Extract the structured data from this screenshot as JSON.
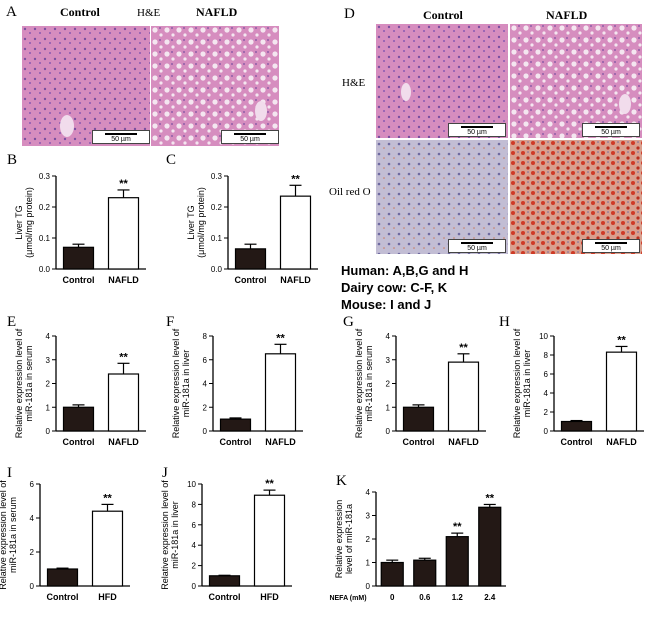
{
  "colors": {
    "bar_dark": "#231815",
    "he_pink": "#d67fb2",
    "he_light": "#efc3e0",
    "oil_bg": "#b9b3cc",
    "oil_red": "#cf3a26"
  },
  "micrographs": {
    "A": {
      "label": "A",
      "header_left": "Control",
      "header_mid": "H&E",
      "header_right": "NAFLD",
      "scale_left": "50 µm",
      "scale_right": "50 µm"
    },
    "D": {
      "label": "D",
      "header_left": "Control",
      "header_right": "NAFLD",
      "row1_label": "H&E",
      "row2_label": "Oil red O",
      "scale_tl": "50 µm",
      "scale_tr": "50 µm",
      "scale_bl": "50 µm",
      "scale_br": "50 µm"
    }
  },
  "legend": {
    "line1": "Human: A,B,G and H",
    "line2": "Dairy cow: C-F, K",
    "line3": "Mouse: I and J"
  },
  "sig_label": "**",
  "chart_data": [
    {
      "id": "B",
      "type": "bar",
      "categories": [
        "Control",
        "NAFLD"
      ],
      "values": [
        0.07,
        0.23
      ],
      "errors": [
        0.01,
        0.025
      ],
      "ylim": [
        0,
        0.3
      ],
      "ticks": [
        "0.0",
        "0.1",
        "0.2",
        "0.3"
      ],
      "ylabel": "Liver TG",
      "ylabel2": "(μmol/mg protein)",
      "styles": [
        "filled",
        "open"
      ]
    },
    {
      "id": "C",
      "type": "bar",
      "categories": [
        "Control",
        "NAFLD"
      ],
      "values": [
        0.065,
        0.235
      ],
      "errors": [
        0.015,
        0.035
      ],
      "ylim": [
        0,
        0.3
      ],
      "ticks": [
        "0.0",
        "0.1",
        "0.2",
        "0.3"
      ],
      "ylabel": "Liver TG",
      "ylabel2": "(μmol/mg protein)",
      "styles": [
        "filled",
        "open"
      ]
    },
    {
      "id": "E",
      "type": "bar",
      "categories": [
        "Control",
        "NAFLD"
      ],
      "values": [
        1.0,
        2.4
      ],
      "errors": [
        0.1,
        0.45
      ],
      "ylim": [
        0,
        4
      ],
      "ticks": [
        "0",
        "1",
        "2",
        "3",
        "4"
      ],
      "ylabel": "Relative expression level of",
      "ylabel2": "miR-181a in serum",
      "styles": [
        "filled",
        "open"
      ]
    },
    {
      "id": "F",
      "type": "bar",
      "categories": [
        "Control",
        "NAFLD"
      ],
      "values": [
        1.0,
        6.5
      ],
      "errors": [
        0.1,
        0.8
      ],
      "ylim": [
        0,
        8
      ],
      "ticks": [
        "0",
        "2",
        "4",
        "6",
        "8"
      ],
      "ylabel": "Relative expression level of",
      "ylabel2": "miR-181a in liver",
      "styles": [
        "filled",
        "open"
      ]
    },
    {
      "id": "G",
      "type": "bar",
      "categories": [
        "Control",
        "NAFLD"
      ],
      "values": [
        1.0,
        2.9
      ],
      "errors": [
        0.1,
        0.35
      ],
      "ylim": [
        0,
        4
      ],
      "ticks": [
        "0",
        "1",
        "2",
        "3",
        "4"
      ],
      "ylabel": "Relative expression level of",
      "ylabel2": "miR-181a in serum",
      "styles": [
        "filled",
        "open"
      ]
    },
    {
      "id": "H",
      "type": "bar",
      "categories": [
        "Control",
        "NAFLD"
      ],
      "values": [
        1.0,
        8.3
      ],
      "errors": [
        0.1,
        0.6
      ],
      "ylim": [
        0,
        10
      ],
      "ticks": [
        "0",
        "2",
        "4",
        "6",
        "8",
        "10"
      ],
      "ylabel": "Relative expression level of",
      "ylabel2": "miR-181a in liver",
      "styles": [
        "filled",
        "open"
      ]
    },
    {
      "id": "I",
      "type": "bar",
      "categories": [
        "Control",
        "HFD"
      ],
      "values": [
        1.0,
        4.4
      ],
      "errors": [
        0.05,
        0.4
      ],
      "ylim": [
        0,
        6
      ],
      "ticks": [
        "0",
        "2",
        "4",
        "6"
      ],
      "ylabel": "Relative expression level of",
      "ylabel2": "miR-181a in serum",
      "styles": [
        "filled",
        "open"
      ]
    },
    {
      "id": "J",
      "type": "bar",
      "categories": [
        "Control",
        "HFD"
      ],
      "values": [
        1.0,
        8.9
      ],
      "errors": [
        0.05,
        0.5
      ],
      "ylim": [
        0,
        10
      ],
      "ticks": [
        "0",
        "2",
        "4",
        "6",
        "8",
        "10"
      ],
      "ylabel": "Relative expression level of",
      "ylabel2": "miR-181a in liver",
      "styles": [
        "filled",
        "open"
      ]
    },
    {
      "id": "K",
      "type": "bar",
      "categories": [
        "0",
        "0.6",
        "1.2",
        "2.4"
      ],
      "xprefix": "NEFA (mM)",
      "values": [
        1.0,
        1.1,
        2.1,
        3.35
      ],
      "errors": [
        0.1,
        0.08,
        0.15,
        0.12
      ],
      "ylim": [
        0,
        4
      ],
      "ticks": [
        "0",
        "1",
        "2",
        "3",
        "4"
      ],
      "ylabel": "Relative expression",
      "ylabel2": "level of miR-181a",
      "sig": [
        false,
        false,
        true,
        true
      ],
      "styles": [
        "filled",
        "filled",
        "filled",
        "filled"
      ]
    }
  ]
}
